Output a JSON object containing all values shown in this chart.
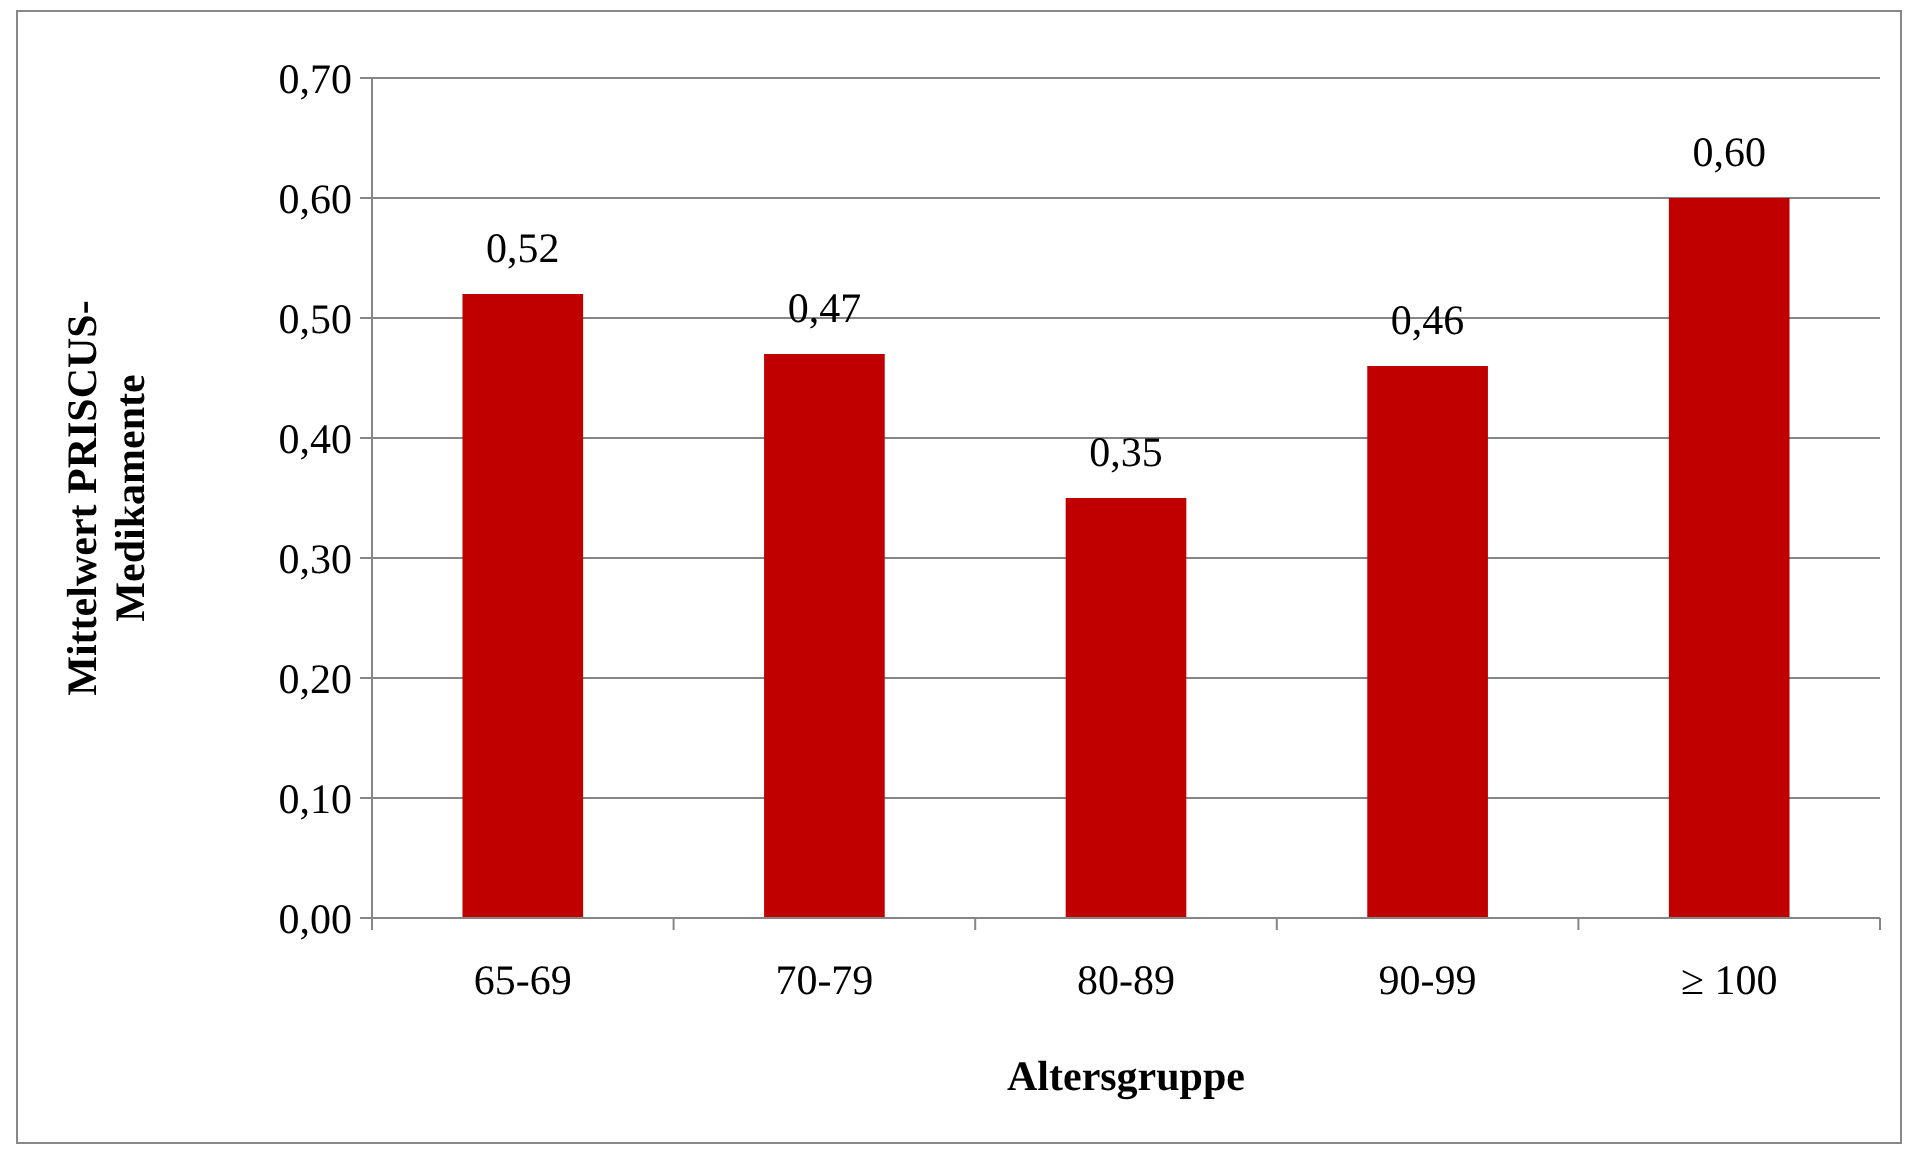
{
  "chart_data": {
    "type": "bar",
    "xlabel": "Altersgruppe",
    "ylabel": "Mittelwert PRISCUS-Medikamente",
    "categories": [
      "65-69",
      "70-79",
      "80-89",
      "90-99",
      "≥ 100"
    ],
    "values": [
      0.52,
      0.47,
      0.35,
      0.46,
      0.6
    ],
    "value_labels": [
      "0,52",
      "0,47",
      "0,35",
      "0,46",
      "0,60"
    ],
    "color": "#c00000",
    "ylim": [
      0,
      0.7
    ],
    "yticks": [
      {
        "value": 0,
        "label": "0,00"
      },
      {
        "value": 0.1,
        "label": "0,10"
      },
      {
        "value": 0.2,
        "label": "0,20"
      },
      {
        "value": 0.3,
        "label": "0,30"
      },
      {
        "value": 0.4,
        "label": "0,40"
      },
      {
        "value": 0.5,
        "label": "0,50"
      },
      {
        "value": 0.6,
        "label": "0,60"
      },
      {
        "value": 0.7,
        "label": "0,70"
      }
    ],
    "grid": "y"
  }
}
